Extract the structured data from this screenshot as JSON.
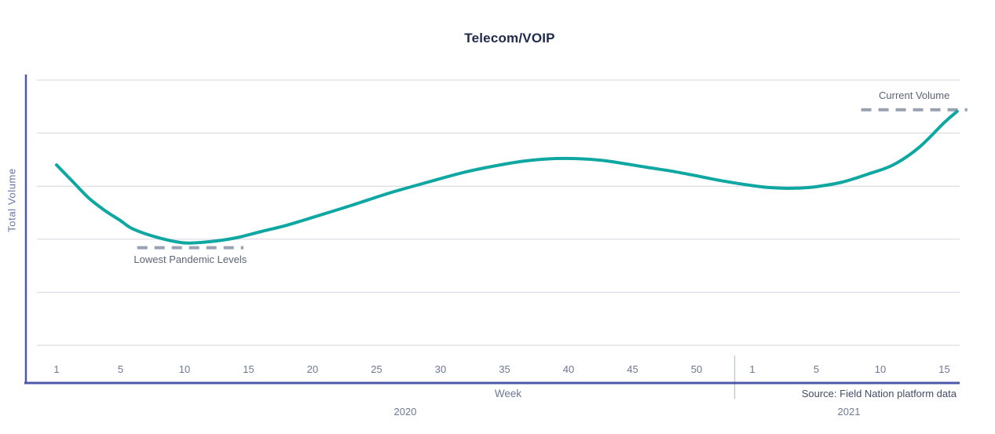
{
  "title": "Telecom/VOIP",
  "y_axis": {
    "label": "Total Volume"
  },
  "x_axis": {
    "label": "Week",
    "source_note": "Source: Field Nation platform data"
  },
  "colors": {
    "line": "#0fa7a2",
    "axis": "#4c58a8",
    "gridline": "#d3d6de",
    "dash": "#99a2b1",
    "year_divider": "#c5cbd6",
    "title_text": "#1e2a4c",
    "muted_text": "#6e7894",
    "annotation_text": "#5c6474",
    "source_text": "#424e68",
    "y_axis_title_text": "#6774a6"
  },
  "chart_data": {
    "type": "line",
    "title": "Telecom/VOIP",
    "xlabel": "Week",
    "ylabel": "Total Volume",
    "ylim": [
      0,
      100
    ],
    "y_ticks_shown": false,
    "grid": "horizontal",
    "gridline_values": [
      0,
      20,
      40,
      60,
      80,
      100
    ],
    "x_groups": [
      {
        "year": "2020",
        "ticks": [
          1,
          5,
          10,
          15,
          20,
          25,
          30,
          35,
          40,
          45,
          50
        ]
      },
      {
        "year": "2021",
        "ticks": [
          1,
          5,
          10,
          15
        ]
      }
    ],
    "series": [
      {
        "name": "Total Volume",
        "color": "#0fa7a2",
        "segments": [
          {
            "year": "2020",
            "points": [
              [
                1,
                68
              ],
              [
                2,
                61.8
              ],
              [
                3,
                55.6
              ],
              [
                4,
                50.9
              ],
              [
                5,
                47
              ],
              [
                6,
                43.8
              ],
              [
                8,
                40.5
              ],
              [
                10,
                38.6
              ],
              [
                12,
                39.1
              ],
              [
                14,
                40.5
              ],
              [
                16,
                42.9
              ],
              [
                18,
                45.3
              ],
              [
                20,
                48.2
              ],
              [
                23,
                52.7
              ],
              [
                26,
                57.4
              ],
              [
                29,
                61.5
              ],
              [
                32,
                65.4
              ],
              [
                35,
                68.3
              ],
              [
                37,
                69.7
              ],
              [
                39,
                70.4
              ],
              [
                41,
                70.3
              ],
              [
                43,
                69.5
              ],
              [
                46,
                67.2
              ],
              [
                48,
                65.7
              ],
              [
                50,
                63.9
              ],
              [
                52,
                62
              ]
            ]
          },
          {
            "year": "2021",
            "points": [
              [
                1,
                60.2
              ],
              [
                2,
                59.5
              ],
              [
                3,
                59.2
              ],
              [
                4,
                59.3
              ],
              [
                5,
                59.8
              ],
              [
                7,
                61.5
              ],
              [
                9,
                64.5
              ],
              [
                11,
                68
              ],
              [
                13,
                74.5
              ],
              [
                15,
                84
              ],
              [
                16,
                88.2
              ]
            ]
          }
        ]
      }
    ],
    "annotations": [
      {
        "label": "Current Volume",
        "value": 88.8,
        "year": "2021",
        "week_start": 8.5,
        "week_end": 16.8,
        "label_position": "above"
      },
      {
        "label": "Lowest Pandemic Levels",
        "value": 36.8,
        "year": "2020",
        "week_start": 6.3,
        "week_end": 14.6,
        "label_position": "below"
      }
    ],
    "source": "Source: Field Nation platform data"
  }
}
